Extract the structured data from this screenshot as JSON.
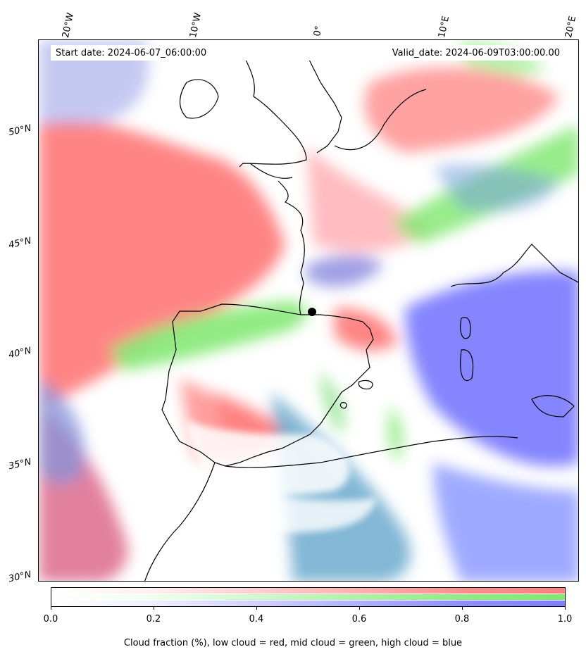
{
  "map": {
    "title_left": "Start date: 2024-06-07_06:00:00",
    "title_right": "Valid_date: 2024-06-09T03:00:00.00",
    "lon_labels": [
      "20°W",
      "10°W",
      "0°",
      "10°E",
      "20°E"
    ],
    "lat_labels": [
      "50°N",
      "45°N",
      "40°N",
      "35°N",
      "30°N"
    ],
    "marker": "black dot near Zaragoza region",
    "layers": {
      "low_cloud_color": "#ff7f7f",
      "mid_cloud_color": "#80e870",
      "high_cloud_color": "#7f7fff",
      "coastline_color": "#000000"
    }
  },
  "colorbar": {
    "ticks": [
      "0.0",
      "0.2",
      "0.4",
      "0.6",
      "0.8",
      "1.0"
    ],
    "caption": "Cloud fraction (%), low cloud = red, mid cloud = green, high cloud = blue"
  }
}
